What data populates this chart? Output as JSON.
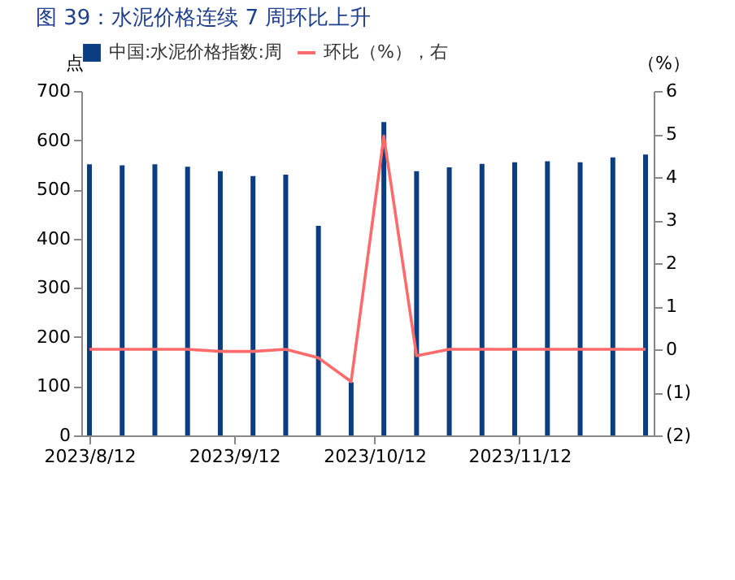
{
  "chart_data": {
    "type": "bar",
    "title": "图 39：水泥价格连续 7 周环比上升",
    "ylabel": "点",
    "y2label": "（%）",
    "x": [
      "2023-08-12",
      "2023-08-19",
      "2023-08-26",
      "2023-09-02",
      "2023-09-09",
      "2023-09-16",
      "2023-09-23",
      "2023-09-30",
      "2023-10-07",
      "2023-10-14",
      "2023-10-21",
      "2023-10-28",
      "2023-11-04",
      "2023-11-11",
      "2023-11-18",
      "2023-11-25",
      "2023-12-02",
      "2023-12-09"
    ],
    "series": [
      {
        "name": "中国:水泥价格指数:周",
        "color": "#0b3d83",
        "values": [
          551,
          549,
          551,
          546,
          537,
          527,
          530,
          426,
          108,
          637,
          537,
          545,
          552,
          555,
          557,
          555,
          565,
          571
        ]
      },
      {
        "name": "环比（%），右",
        "type": "line",
        "axis": "y2",
        "color": "#ff6b6b",
        "values": [
          0.0,
          0.0,
          0.0,
          0.0,
          -0.05,
          -0.05,
          0.0,
          -0.2,
          -0.75,
          4.95,
          -0.15,
          0.0,
          0.0,
          0.0,
          0.0,
          0.0,
          0.0,
          0.0
        ]
      }
    ],
    "xlim": [
      "2023-08-12",
      "2023-12-09"
    ],
    "xticks": [
      {
        "value": "2023-08-12",
        "label": "2023/8/12"
      },
      {
        "value": "2023-09-12",
        "label": "2023/9/12"
      },
      {
        "value": "2023-10-12",
        "label": "2023/10/12"
      },
      {
        "value": "2023-11-12",
        "label": "2023/11/12"
      }
    ],
    "ylim": [
      0,
      700
    ],
    "yticks": [
      0,
      100,
      200,
      300,
      400,
      500,
      600,
      700
    ],
    "y2lim": [
      -2,
      6
    ],
    "y2ticks": [
      {
        "value": -2,
        "label": "(2)"
      },
      {
        "value": -1,
        "label": "(1)"
      },
      0,
      1,
      2,
      3,
      4,
      5,
      6
    ],
    "legend": "top",
    "grid": false
  }
}
